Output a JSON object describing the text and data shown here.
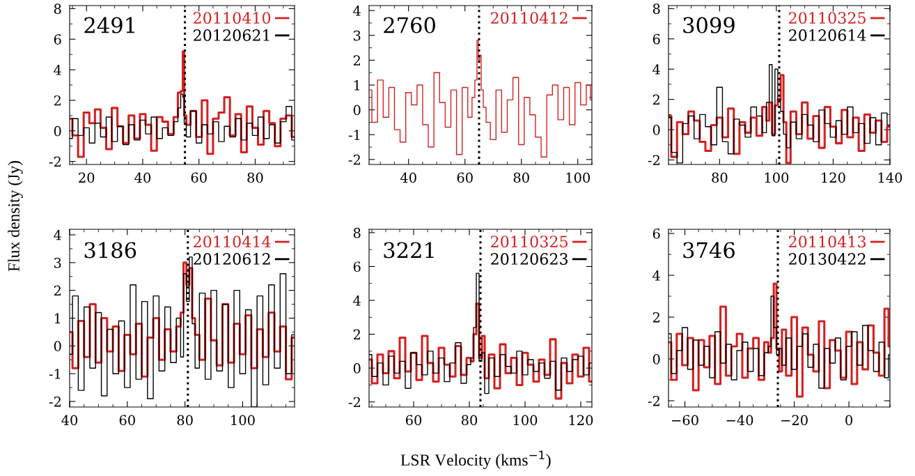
{
  "chart_data": [
    {
      "type": "step",
      "annotations": [
        "2491"
      ],
      "ylabel": "Flux density (Jy)",
      "legend": "top right",
      "xlim": [
        14,
        94
      ],
      "xticks": [
        20,
        40,
        60,
        80
      ],
      "ylim": [
        -2.2,
        8.2
      ],
      "yticks": [
        -2,
        0,
        2,
        4,
        6,
        8
      ],
      "ref_lines": [
        {
          "axis": "x",
          "value": 55,
          "color": "#000000",
          "line_style": "dotted"
        }
      ],
      "x": [
        14,
        16,
        18,
        20,
        22,
        24,
        26,
        28,
        30,
        32,
        34,
        36,
        38,
        40,
        42,
        44,
        46,
        48,
        50,
        52,
        53,
        54,
        54.5,
        55,
        56,
        58,
        60,
        62,
        64,
        66,
        68,
        70,
        72,
        74,
        76,
        78,
        80,
        82,
        84,
        86,
        88,
        90,
        92,
        94
      ],
      "series": [
        {
          "name": "20110410",
          "color": "#d42020",
          "values": [
            0.8,
            -0.3,
            -1.7,
            1.2,
            0.5,
            1.4,
            0.2,
            -1.2,
            1.5,
            0.3,
            -0.8,
            1.0,
            -0.5,
            1.1,
            0.4,
            -1.3,
            0.9,
            0.6,
            -0.2,
            0.9,
            2.5,
            2.6,
            5.2,
            1.0,
            0.4,
            1.3,
            -0.4,
            2.0,
            -1.5,
            0.8,
            1.2,
            2.2,
            -0.3,
            1.1,
            -1.4,
            1.6,
            0.2,
            -0.9,
            1.3,
            0.5,
            -1.0,
            0.8,
            1.0,
            -0.4
          ]
        },
        {
          "name": "20120621",
          "color": "#000000",
          "values": [
            -0.5,
            0.8,
            -0.3,
            0.2,
            -0.8,
            0.5,
            -0.4,
            0.9,
            -0.7,
            0.3,
            -0.9,
            0.4,
            -0.6,
            0.7,
            -0.2,
            0.9,
            -0.5,
            0.2,
            -0.3,
            0.6,
            1.5,
            2.4,
            2.2,
            0.5,
            -0.4,
            1.3,
            -0.8,
            0.4,
            -0.2,
            0.6,
            -0.7,
            0.3,
            -0.4,
            0.8,
            -0.6,
            0.5,
            -0.3,
            0.9,
            -0.5,
            0.4,
            -0.8,
            0.6,
            1.6,
            -0.6
          ]
        }
      ]
    },
    {
      "type": "step",
      "annotations": [
        "2760"
      ],
      "legend": "top right",
      "xlim": [
        26,
        105
      ],
      "xticks": [
        40,
        60,
        80,
        100
      ],
      "ylim": [
        -2.2,
        4.2
      ],
      "yticks": [
        -2,
        -1,
        0,
        1,
        2,
        3,
        4
      ],
      "ref_lines": [
        {
          "axis": "x",
          "value": 65,
          "color": "#000000",
          "line_style": "dotted"
        }
      ],
      "x": [
        26,
        28,
        30,
        32,
        34,
        36,
        38,
        40,
        42,
        44,
        46,
        48,
        50,
        52,
        54,
        56,
        58,
        60,
        62,
        63,
        64,
        64.5,
        65,
        65.5,
        66,
        67,
        68,
        70,
        72,
        74,
        76,
        78,
        80,
        82,
        84,
        86,
        88,
        90,
        92,
        94,
        96,
        98,
        100,
        102,
        104,
        105
      ],
      "series": [
        {
          "name": "20110412",
          "color": "#d42020",
          "values": [
            0.8,
            -0.5,
            1.2,
            -0.3,
            0.9,
            -0.8,
            -1.3,
            0.7,
            0.2,
            1.0,
            -0.6,
            -1.5,
            1.5,
            0.3,
            -0.7,
            0.8,
            -1.8,
            0.9,
            -0.3,
            0.5,
            1.2,
            2.8,
            2.0,
            2.2,
            0.8,
            0.1,
            -0.5,
            -1.2,
            0.8,
            -0.9,
            0.4,
            1.3,
            -1.4,
            0.5,
            -0.2,
            -1.1,
            -1.9,
            0.6,
            1.0,
            -0.4,
            0.9,
            -0.6,
            1.1,
            0.2,
            1.0,
            0.4
          ]
        }
      ]
    },
    {
      "type": "step",
      "annotations": [
        "3099"
      ],
      "legend": "top right",
      "xlim": [
        62,
        140
      ],
      "xticks": [
        80,
        100,
        120,
        140
      ],
      "ylim": [
        -2.3,
        8.2
      ],
      "yticks": [
        -2,
        0,
        2,
        4,
        6,
        8
      ],
      "ref_lines": [
        {
          "axis": "x",
          "value": 101,
          "color": "#000000",
          "line_style": "dotted"
        }
      ],
      "x": [
        62,
        64,
        66,
        68,
        70,
        72,
        74,
        76,
        78,
        80,
        82,
        84,
        86,
        88,
        90,
        92,
        94,
        96,
        97,
        98,
        99,
        100,
        101,
        102,
        103,
        104,
        106,
        108,
        110,
        112,
        114,
        116,
        118,
        120,
        122,
        124,
        126,
        128,
        130,
        132,
        134,
        136,
        138,
        140
      ],
      "series": [
        {
          "name": "20110325",
          "color": "#d42020",
          "values": [
            0.9,
            -1.8,
            0.5,
            -0.3,
            1.2,
            0.6,
            -0.8,
            -1.4,
            0.3,
            0.8,
            -0.5,
            1.4,
            -1.6,
            0.5,
            -0.2,
            0.8,
            -0.4,
            1.5,
            0.6,
            1.8,
            -0.3,
            1.6,
            2.0,
            3.6,
            0.5,
            -2.2,
            1.2,
            -0.3,
            1.8,
            -0.6,
            0.9,
            -1.2,
            1.5,
            0.2,
            -0.9,
            1.3,
            -0.5,
            0.8,
            -1.4,
            1.0,
            -0.2,
            0.6,
            -0.8,
            0.2
          ]
        },
        {
          "name": "20120614",
          "color": "#000000",
          "values": [
            0.8,
            -1.5,
            -2.2,
            0.4,
            0.9,
            -0.6,
            1.0,
            0.2,
            -1.0,
            2.8,
            -0.8,
            -1.6,
            0.7,
            0.3,
            -0.5,
            1.5,
            0.9,
            -0.2,
            1.8,
            4.3,
            -0.4,
            4.0,
            2.0,
            1.2,
            -0.3,
            -1.2,
            0.5,
            -0.6,
            1.0,
            0.3,
            -0.8,
            1.3,
            0.4,
            -0.5,
            0.6,
            -0.3,
            1.5,
            -0.2,
            0.4,
            -0.9,
            0.8,
            -1.0,
            1.1,
            0.3
          ]
        }
      ]
    },
    {
      "type": "step",
      "annotations": [
        "3186"
      ],
      "legend": "top right",
      "xlim": [
        40,
        118
      ],
      "xticks": [
        40,
        60,
        80,
        100
      ],
      "ylim": [
        -2.2,
        4.2
      ],
      "yticks": [
        -2,
        -1,
        0,
        1,
        2,
        3,
        4
      ],
      "ref_lines": [
        {
          "axis": "x",
          "value": 81,
          "color": "#000000",
          "line_style": "dotted"
        }
      ],
      "x": [
        40,
        42,
        44,
        46,
        48,
        50,
        52,
        54,
        56,
        58,
        60,
        62,
        64,
        66,
        68,
        70,
        72,
        74,
        76,
        78,
        79,
        80,
        81,
        82,
        83,
        84,
        86,
        88,
        90,
        92,
        94,
        96,
        98,
        100,
        102,
        104,
        106,
        108,
        110,
        112,
        114,
        116,
        118
      ],
      "series": [
        {
          "name": "20110414",
          "color": "#d42020",
          "values": [
            0.5,
            -0.8,
            0.9,
            -0.4,
            1.5,
            -0.6,
            1.0,
            -0.2,
            0.7,
            -0.9,
            0.4,
            -0.3,
            0.8,
            -1.1,
            0.3,
            1.0,
            -0.5,
            0.6,
            -0.2,
            0.7,
            1.2,
            3.0,
            2.2,
            2.8,
            1.0,
            0.4,
            -0.5,
            1.7,
            0.2,
            -0.7,
            1.5,
            -0.6,
            0.8,
            -0.3,
            1.1,
            -0.8,
            0.6,
            -0.4,
            1.2,
            -0.2,
            0.7,
            -1.2,
            0.3
          ]
        },
        {
          "name": "20120612",
          "color": "#000000",
          "values": [
            -0.3,
            1.8,
            -1.6,
            1.4,
            -0.8,
            1.2,
            -1.8,
            0.6,
            -1.0,
            0.9,
            -1.5,
            2.2,
            -1.2,
            1.6,
            -1.9,
            1.8,
            -0.9,
            1.4,
            -0.6,
            1.0,
            -0.4,
            2.6,
            1.6,
            3.2,
            0.8,
            -0.8,
            1.9,
            -1.2,
            2.0,
            -0.9,
            1.5,
            -1.5,
            2.0,
            -1.0,
            1.3,
            -2.2,
            1.8,
            -1.4,
            2.2,
            -0.8,
            2.6,
            -1.0,
            0.4
          ]
        }
      ]
    },
    {
      "type": "step",
      "annotations": [
        "3221"
      ],
      "xlabel": "LSR Velocity (kms$^{−1}$)",
      "legend": "top right",
      "xlim": [
        44,
        124
      ],
      "xticks": [
        60,
        80,
        100,
        120
      ],
      "ylim": [
        -2.3,
        8.2
      ],
      "yticks": [
        -2,
        0,
        2,
        4,
        6,
        8
      ],
      "ref_lines": [
        {
          "axis": "x",
          "value": 84,
          "color": "#000000",
          "line_style": "dotted"
        }
      ],
      "x": [
        44,
        46,
        48,
        50,
        52,
        54,
        56,
        58,
        60,
        62,
        64,
        66,
        68,
        70,
        72,
        74,
        76,
        78,
        80,
        81,
        82,
        83,
        84,
        85,
        86,
        88,
        90,
        92,
        94,
        96,
        98,
        100,
        102,
        104,
        106,
        108,
        110,
        112,
        114,
        116,
        118,
        120,
        122,
        124
      ],
      "series": [
        {
          "name": "20110325",
          "color": "#d42020",
          "values": [
            0.5,
            -0.9,
            0.8,
            -0.3,
            1.0,
            -0.6,
            1.8,
            -0.2,
            0.9,
            -0.7,
            1.9,
            0.3,
            -0.8,
            1.2,
            0.2,
            -0.5,
            1.3,
            -0.4,
            0.6,
            0.4,
            2.0,
            3.8,
            0.6,
            1.9,
            -0.6,
            0.8,
            -1.2,
            1.4,
            -0.3,
            0.6,
            -1.0,
            0.9,
            0.2,
            -0.8,
            0.5,
            -0.4,
            1.7,
            -1.8,
            0.3,
            -0.9,
            0.8,
            -0.5,
            1.2,
            -0.8
          ]
        },
        {
          "name": "20120623",
          "color": "#000000",
          "values": [
            0.8,
            -0.5,
            0.3,
            -1.0,
            0.7,
            -0.3,
            0.4,
            -1.2,
            0.9,
            0.2,
            -0.4,
            1.0,
            -0.3,
            0.6,
            -0.8,
            0.3,
            1.5,
            -0.9,
            0.2,
            0.6,
            2.4,
            5.6,
            0.4,
            0.9,
            -1.5,
            0.6,
            -0.5,
            0.8,
            0.1,
            -0.3,
            1.0,
            -0.4,
            0.5,
            -0.2,
            0.3,
            -0.6,
            0.4,
            -1.3,
            0.6,
            -0.2,
            0.5,
            0.7,
            -0.4,
            0.3
          ]
        }
      ]
    },
    {
      "type": "step",
      "annotations": [
        "3746"
      ],
      "legend": "top right",
      "xlim": [
        -66,
        15
      ],
      "xticks": [
        {
          "value": -60,
          "label": "−60"
        },
        {
          "value": -40,
          "label": "−40"
        },
        {
          "value": -20,
          "label": "−20"
        },
        0
      ],
      "ylim": [
        -2.3,
        6.2
      ],
      "yticks": [
        -2,
        0,
        2,
        4,
        6
      ],
      "ref_lines": [
        {
          "axis": "x",
          "value": -26,
          "color": "#000000",
          "line_style": "dotted"
        }
      ],
      "x": [
        -66,
        -64,
        -62,
        -60,
        -58,
        -56,
        -54,
        -52,
        -50,
        -48,
        -46,
        -44,
        -42,
        -40,
        -38,
        -36,
        -34,
        -32,
        -30,
        -29,
        -28,
        -27,
        -26,
        -25,
        -24,
        -22,
        -20,
        -18,
        -16,
        -14,
        -12,
        -10,
        -8,
        -6,
        -4,
        -2,
        0,
        2,
        4,
        6,
        8,
        10,
        12,
        14,
        15
      ],
      "series": [
        {
          "name": "20110413",
          "color": "#d42020",
          "values": [
            0.8,
            -1.0,
            1.2,
            -0.3,
            1.0,
            -1.5,
            0.9,
            -0.4,
            1.1,
            -1.2,
            2.5,
            -0.8,
            0.6,
            1.2,
            -0.9,
            0.5,
            1.0,
            -1.0,
            0.8,
            0.3,
            1.0,
            3.6,
            0.5,
            -0.6,
            1.4,
            -0.8,
            2.0,
            -1.8,
            1.5,
            0.2,
            -0.6,
            1.8,
            -1.4,
            0.9,
            0.4,
            -0.9,
            1.3,
            -1.2,
            0.8,
            -0.5,
            1.6,
            0.3,
            -0.8,
            2.4,
            0.6
          ]
        },
        {
          "name": "20130422",
          "color": "#000000",
          "values": [
            1.2,
            -0.7,
            0.4,
            1.5,
            -0.5,
            0.9,
            -0.3,
            0.6,
            -0.9,
            1.3,
            -0.2,
            0.7,
            -1.0,
            0.4,
            0.8,
            -0.6,
            0.5,
            -0.8,
            0.3,
            0.6,
            3.0,
            1.5,
            0.2,
            0.5,
            -0.3,
            1.0,
            -0.5,
            0.6,
            1.2,
            -0.4,
            0.7,
            -1.4,
            0.5,
            -0.2,
            1.0,
            -1.0,
            0.6,
            1.3,
            -0.3,
            1.6,
            0.4,
            -0.6,
            0.8,
            -0.9,
            0.2
          ]
        }
      ]
    }
  ]
}
